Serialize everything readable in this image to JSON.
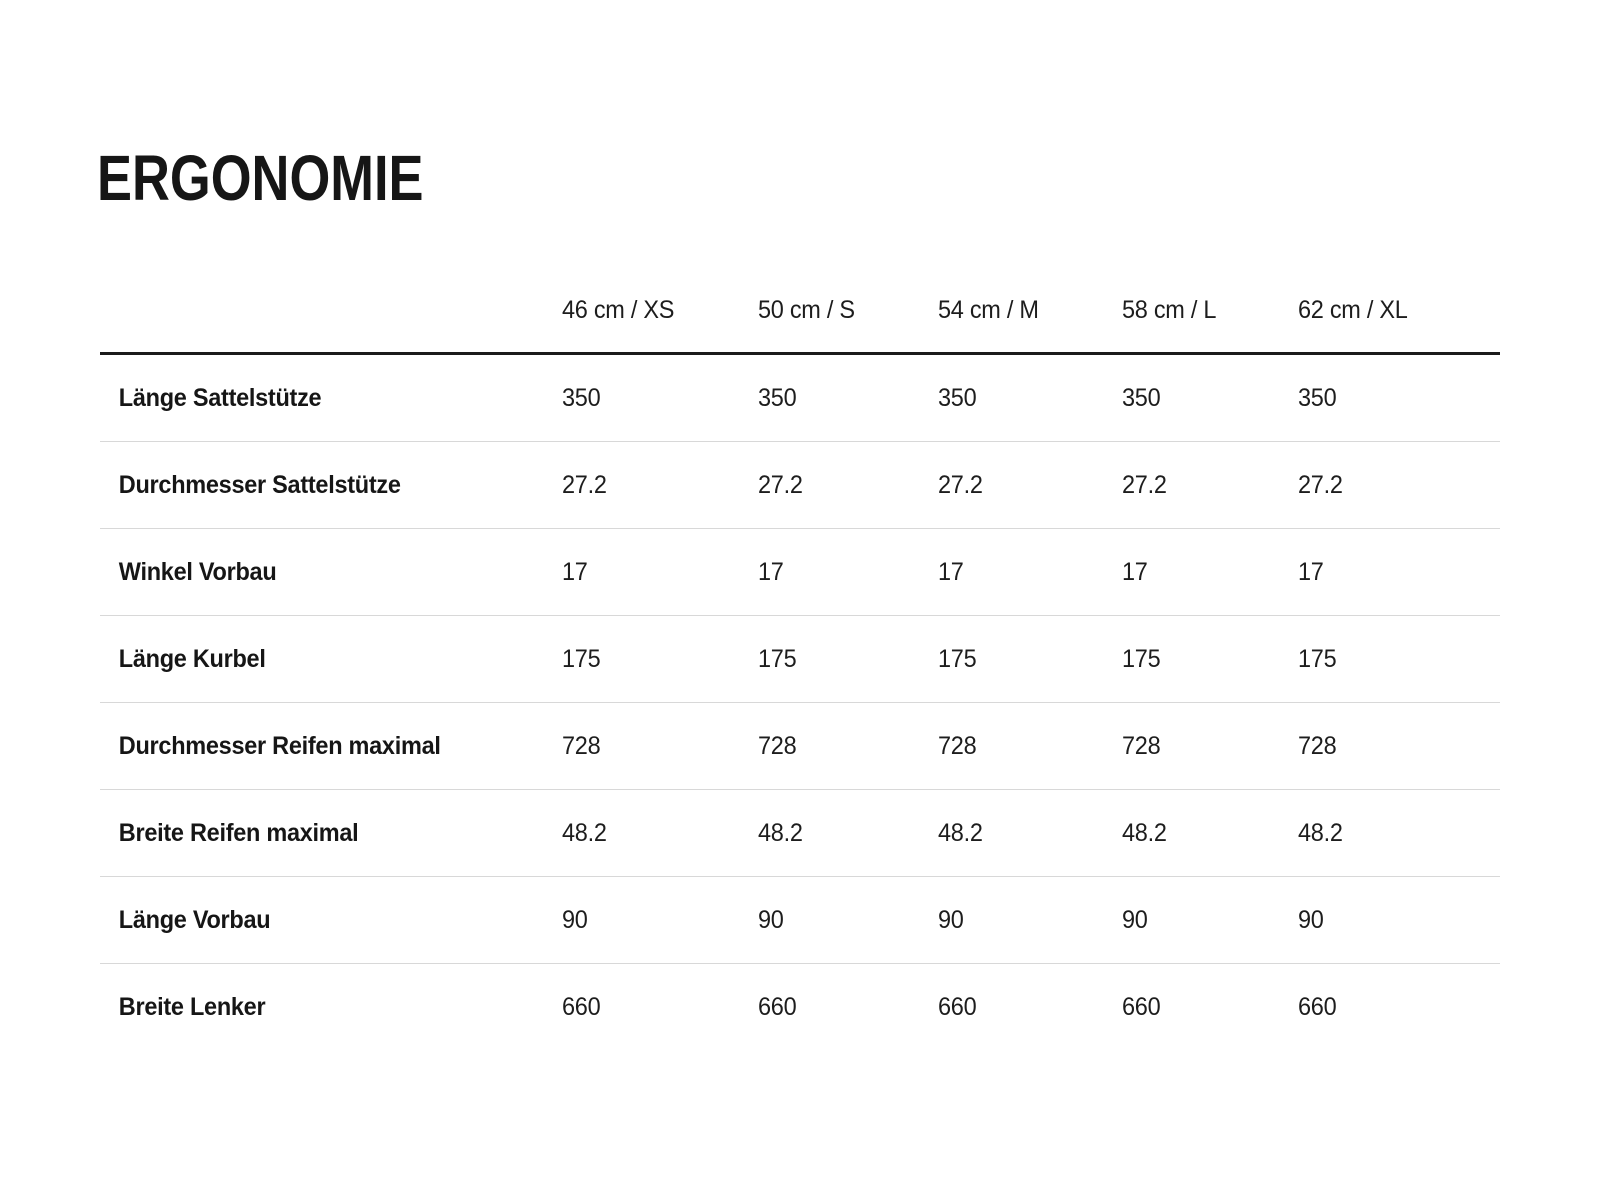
{
  "page": {
    "title": "ERGONOMIE"
  },
  "table": {
    "columns": [
      "46 cm / XS",
      "50 cm / S",
      "54 cm / M",
      "58 cm / L",
      "62 cm / XL"
    ],
    "rows": [
      {
        "label": "Länge Sattelstütze",
        "values": [
          "350",
          "350",
          "350",
          "350",
          "350"
        ]
      },
      {
        "label": "Durchmesser Sattelstütze",
        "values": [
          "27.2",
          "27.2",
          "27.2",
          "27.2",
          "27.2"
        ]
      },
      {
        "label": "Winkel Vorbau",
        "values": [
          "17",
          "17",
          "17",
          "17",
          "17"
        ]
      },
      {
        "label": "Länge Kurbel",
        "values": [
          "175",
          "175",
          "175",
          "175",
          "175"
        ]
      },
      {
        "label": "Durchmesser Reifen maximal",
        "values": [
          "728",
          "728",
          "728",
          "728",
          "728"
        ]
      },
      {
        "label": "Breite Reifen maximal",
        "values": [
          "48.2",
          "48.2",
          "48.2",
          "48.2",
          "48.2"
        ]
      },
      {
        "label": "Länge Vorbau",
        "values": [
          "90",
          "90",
          "90",
          "90",
          "90"
        ]
      },
      {
        "label": "Breite Lenker",
        "values": [
          "660",
          "660",
          "660",
          "660",
          "660"
        ]
      }
    ]
  },
  "colors": {
    "text": "#1d1d1d",
    "header_rule": "#1b1b1b",
    "row_separator": "#d8d8d8",
    "background": "#ffffff"
  }
}
